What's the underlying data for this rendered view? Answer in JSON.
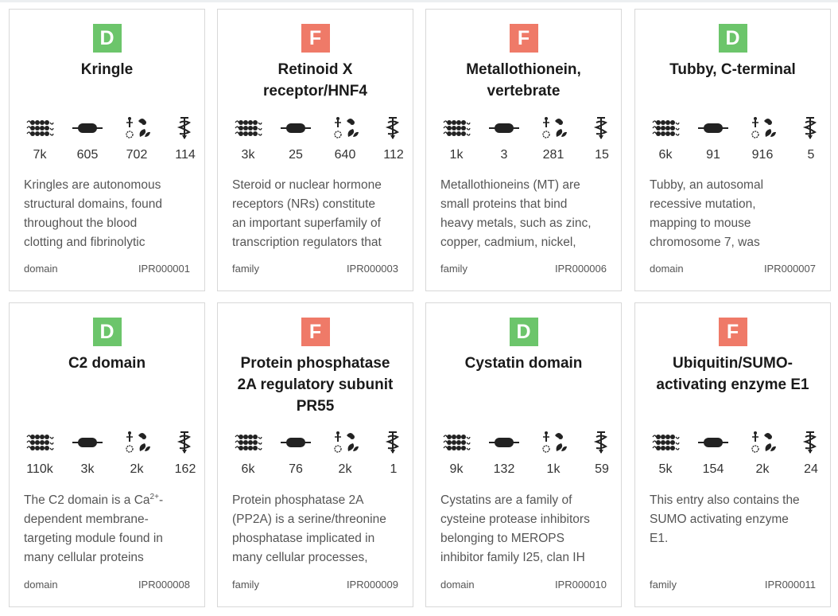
{
  "colors": {
    "domain": "#6cc56b",
    "family": "#ef7a68"
  },
  "stat_icons": [
    "sequences-icon",
    "protein-domain-icon",
    "taxonomy-icon",
    "structure-icon"
  ],
  "cards": [
    {
      "badge": "D",
      "badge_color": "#6cc56b",
      "title_lines": [
        "Kringle"
      ],
      "stats": [
        "7k",
        "605",
        "702",
        "114"
      ],
      "desc_lines": [
        "Kringles are autonomous",
        "structural domains, found",
        "throughout the blood",
        "clotting and fibrinolytic"
      ],
      "type": "domain",
      "accession": "IPR000001"
    },
    {
      "badge": "F",
      "badge_color": "#ef7a68",
      "title_lines": [
        "Retinoid X",
        "receptor/HNF4"
      ],
      "stats": [
        "3k",
        "25",
        "640",
        "112"
      ],
      "desc_lines": [
        "Steroid or nuclear hormone",
        "receptors (NRs) constitute",
        "an important superfamily of",
        "transcription regulators that"
      ],
      "type": "family",
      "accession": "IPR000003"
    },
    {
      "badge": "F",
      "badge_color": "#ef7a68",
      "title_lines": [
        "Metallothionein,",
        "vertebrate"
      ],
      "stats": [
        "1k",
        "3",
        "281",
        "15"
      ],
      "desc_lines": [
        "Metallothioneins (MT) are",
        "small proteins that bind",
        "heavy metals, such as zinc,",
        "copper, cadmium, nickel,"
      ],
      "type": "family",
      "accession": "IPR000006"
    },
    {
      "badge": "D",
      "badge_color": "#6cc56b",
      "title_lines": [
        "Tubby, C-terminal"
      ],
      "stats": [
        "6k",
        "91",
        "916",
        "5"
      ],
      "desc_lines": [
        "Tubby, an autosomal",
        "recessive mutation,",
        "mapping to mouse",
        "chromosome 7, was"
      ],
      "type": "domain",
      "accession": "IPR000007"
    },
    {
      "badge": "D",
      "badge_color": "#6cc56b",
      "title_lines": [
        "C2 domain"
      ],
      "stats": [
        "110k",
        "3k",
        "2k",
        "162"
      ],
      "desc_lines": [
        "The C2 domain is a Ca",
        "dependent membrane-",
        "targeting module found in",
        "many cellular proteins"
      ],
      "desc_sup": "2+",
      "desc_sup_after": "-",
      "type": "domain",
      "accession": "IPR000008"
    },
    {
      "badge": "F",
      "badge_color": "#ef7a68",
      "title_lines": [
        "Protein phosphatase",
        "2A regulatory subunit",
        "PR55"
      ],
      "stats": [
        "6k",
        "76",
        "2k",
        "1"
      ],
      "desc_lines": [
        "Protein phosphatase 2A",
        "(PP2A) is a serine/threonine",
        "phosphatase implicated in",
        "many cellular processes,"
      ],
      "type": "family",
      "accession": "IPR000009"
    },
    {
      "badge": "D",
      "badge_color": "#6cc56b",
      "title_lines": [
        "Cystatin domain"
      ],
      "stats": [
        "9k",
        "132",
        "1k",
        "59"
      ],
      "desc_lines": [
        "Cystatins are a family of",
        "cysteine protease inhibitors",
        "belonging to MEROPS",
        "inhibitor family I25, clan IH"
      ],
      "type": "domain",
      "accession": "IPR000010"
    },
    {
      "badge": "F",
      "badge_color": "#ef7a68",
      "title_lines": [
        "Ubiquitin/SUMO-",
        "activating enzyme E1"
      ],
      "stats": [
        "5k",
        "154",
        "2k",
        "24"
      ],
      "desc_lines": [
        "This entry also contains the",
        "SUMO activating enzyme",
        "E1."
      ],
      "type": "family",
      "accession": "IPR000011"
    }
  ]
}
